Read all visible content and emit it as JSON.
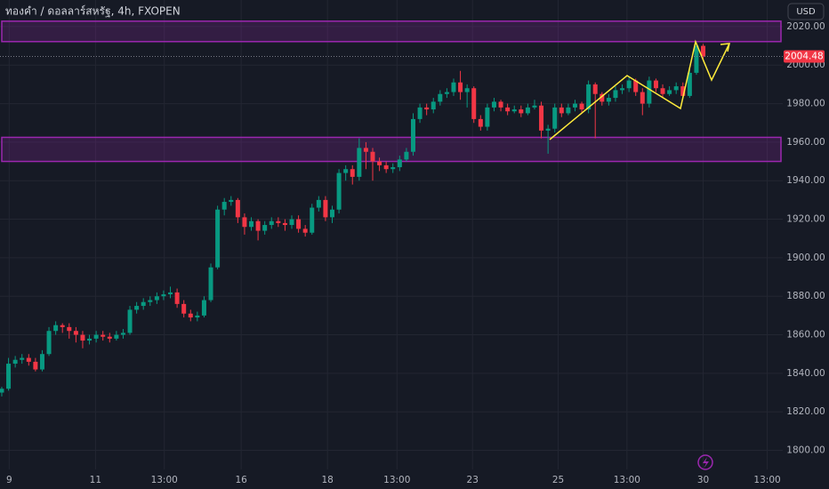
{
  "chart_data": {
    "type": "candlestick",
    "title": "ทองคำ / ดอลลาร์สหรัฐ, 4h, FXOPEN",
    "currency": "USD",
    "up_color": "#089981",
    "down_color": "#f23645",
    "zone_color": "#9c27b0",
    "grid": true,
    "ohlc": [
      [
        1830,
        1833,
        1828,
        1832
      ],
      [
        1832,
        1848,
        1831,
        1845
      ],
      [
        1845,
        1849,
        1843,
        1847
      ],
      [
        1847,
        1850,
        1845,
        1848
      ],
      [
        1848,
        1850,
        1844,
        1846
      ],
      [
        1846,
        1848,
        1841,
        1842
      ],
      [
        1842,
        1852,
        1841,
        1850
      ],
      [
        1850,
        1864,
        1849,
        1862
      ],
      [
        1862,
        1867,
        1860,
        1865
      ],
      [
        1865,
        1866,
        1861,
        1864
      ],
      [
        1864,
        1866,
        1858,
        1862
      ],
      [
        1862,
        1864,
        1856,
        1860
      ],
      [
        1860,
        1862,
        1853,
        1857
      ],
      [
        1857,
        1860,
        1855,
        1858
      ],
      [
        1858,
        1862,
        1856,
        1860
      ],
      [
        1860,
        1862,
        1857,
        1859
      ],
      [
        1859,
        1861,
        1856,
        1858
      ],
      [
        1858,
        1862,
        1857,
        1860
      ],
      [
        1860,
        1863,
        1858,
        1861
      ],
      [
        1861,
        1875,
        1860,
        1873
      ],
      [
        1873,
        1877,
        1871,
        1875
      ],
      [
        1875,
        1879,
        1873,
        1877
      ],
      [
        1877,
        1880,
        1875,
        1878
      ],
      [
        1878,
        1882,
        1876,
        1880
      ],
      [
        1880,
        1883,
        1878,
        1881
      ],
      [
        1881,
        1885,
        1879,
        1882
      ],
      [
        1882,
        1884,
        1874,
        1876
      ],
      [
        1876,
        1878,
        1869,
        1871
      ],
      [
        1871,
        1873,
        1867,
        1869
      ],
      [
        1869,
        1872,
        1867,
        1870
      ],
      [
        1870,
        1880,
        1869,
        1878
      ],
      [
        1878,
        1897,
        1877,
        1895
      ],
      [
        1895,
        1927,
        1894,
        1925
      ],
      [
        1925,
        1931,
        1922,
        1929
      ],
      [
        1929,
        1932,
        1927,
        1930
      ],
      [
        1930,
        1931,
        1918,
        1921
      ],
      [
        1921,
        1923,
        1912,
        1916
      ],
      [
        1916,
        1921,
        1914,
        1919
      ],
      [
        1919,
        1920,
        1909,
        1914
      ],
      [
        1914,
        1919,
        1912,
        1917
      ],
      [
        1917,
        1921,
        1915,
        1919
      ],
      [
        1919,
        1921,
        1916,
        1918
      ],
      [
        1918,
        1920,
        1914,
        1917
      ],
      [
        1917,
        1922,
        1915,
        1920
      ],
      [
        1920,
        1922,
        1913,
        1915
      ],
      [
        1915,
        1917,
        1911,
        1913
      ],
      [
        1913,
        1928,
        1912,
        1926
      ],
      [
        1926,
        1932,
        1924,
        1930
      ],
      [
        1930,
        1932,
        1919,
        1921
      ],
      [
        1921,
        1927,
        1918,
        1925
      ],
      [
        1925,
        1946,
        1923,
        1944
      ],
      [
        1944,
        1948,
        1940,
        1946
      ],
      [
        1946,
        1948,
        1938,
        1942
      ],
      [
        1942,
        1962,
        1940,
        1957
      ],
      [
        1957,
        1960,
        1946,
        1955
      ],
      [
        1955,
        1957,
        1940,
        1950
      ],
      [
        1950,
        1952,
        1945,
        1948
      ],
      [
        1948,
        1950,
        1944,
        1946
      ],
      [
        1946,
        1949,
        1944,
        1947
      ],
      [
        1947,
        1953,
        1945,
        1951
      ],
      [
        1951,
        1957,
        1950,
        1955
      ],
      [
        1955,
        1975,
        1953,
        1972
      ],
      [
        1972,
        1980,
        1970,
        1978
      ],
      [
        1978,
        1980,
        1974,
        1977
      ],
      [
        1977,
        1983,
        1975,
        1981
      ],
      [
        1981,
        1987,
        1979,
        1985
      ],
      [
        1985,
        1988,
        1983,
        1986
      ],
      [
        1986,
        1993,
        1984,
        1991
      ],
      [
        1991,
        1997,
        1982,
        1986
      ],
      [
        1986,
        1990,
        1978,
        1988
      ],
      [
        1988,
        1989,
        1970,
        1972
      ],
      [
        1972,
        1974,
        1966,
        1968
      ],
      [
        1968,
        1980,
        1966,
        1978
      ],
      [
        1978,
        1983,
        1976,
        1981
      ],
      [
        1981,
        1982,
        1976,
        1978
      ],
      [
        1978,
        1980,
        1974,
        1976
      ],
      [
        1976,
        1979,
        1975,
        1977
      ],
      [
        1977,
        1979,
        1973,
        1975
      ],
      [
        1975,
        1980,
        1974,
        1978
      ],
      [
        1978,
        1982,
        1977,
        1979
      ],
      [
        1979,
        1981,
        1962,
        1966
      ],
      [
        1966,
        1969,
        1954,
        1967
      ],
      [
        1967,
        1980,
        1965,
        1978
      ],
      [
        1978,
        1980,
        1973,
        1975
      ],
      [
        1975,
        1980,
        1974,
        1978
      ],
      [
        1978,
        1982,
        1976,
        1980
      ],
      [
        1980,
        1981,
        1975,
        1977
      ],
      [
        1977,
        1992,
        1975,
        1990
      ],
      [
        1990,
        1991,
        1962,
        1985
      ],
      [
        1985,
        1986,
        1979,
        1981
      ],
      [
        1981,
        1985,
        1979,
        1983
      ],
      [
        1983,
        1989,
        1981,
        1987
      ],
      [
        1987,
        1990,
        1985,
        1988
      ],
      [
        1988,
        1994,
        1986,
        1992
      ],
      [
        1992,
        1993,
        1984,
        1986
      ],
      [
        1986,
        1988,
        1974,
        1980
      ],
      [
        1980,
        1994,
        1978,
        1992
      ],
      [
        1992,
        1993,
        1986,
        1988
      ],
      [
        1988,
        1990,
        1983,
        1985
      ],
      [
        1985,
        1989,
        1984,
        1987
      ],
      [
        1987,
        1991,
        1985,
        1989
      ],
      [
        1989,
        1991,
        1983,
        1984
      ],
      [
        1984,
        1998,
        1983,
        1996
      ],
      [
        1996,
        2012,
        1995,
        2010
      ],
      [
        2010,
        2011,
        2003,
        2004.48
      ]
    ],
    "last_price": 2004.48,
    "zones": [
      [
        2012.2,
        2022.8
      ],
      [
        1950,
        1962.5
      ]
    ],
    "xlim": [
      -0.26,
      115.8
    ],
    "xticks": [
      {
        "value": 1.1,
        "label": "9"
      },
      {
        "value": 13.9,
        "label": "11"
      },
      {
        "value": 24.1,
        "label": "13:00"
      },
      {
        "value": 35.5,
        "label": "16"
      },
      {
        "value": 48.3,
        "label": "18"
      },
      {
        "value": 58.6,
        "label": "13:00"
      },
      {
        "value": 69.8,
        "label": "23"
      },
      {
        "value": 82.5,
        "label": "25"
      },
      {
        "value": 92.7,
        "label": "13:00"
      },
      {
        "value": 104,
        "label": "30"
      },
      {
        "value": 113.5,
        "label": "13:00"
      }
    ],
    "ylim": [
      1790.1,
      2033.8
    ],
    "yticks": [
      {
        "value": 1800,
        "label": "1800.00"
      },
      {
        "value": 1820,
        "label": "1820.00"
      },
      {
        "value": 1840,
        "label": "1840.00"
      },
      {
        "value": 1860,
        "label": "1860.00"
      },
      {
        "value": 1880,
        "label": "1880.00"
      },
      {
        "value": 1900,
        "label": "1900.00"
      },
      {
        "value": 1920,
        "label": "1920.00"
      },
      {
        "value": 1940,
        "label": "1940.00"
      },
      {
        "value": 1960,
        "label": "1960.00"
      },
      {
        "value": 1980,
        "label": "1980.00"
      },
      {
        "value": 2000,
        "label": "2000.00"
      },
      {
        "value": 2020,
        "label": "2020.00"
      }
    ]
  }
}
